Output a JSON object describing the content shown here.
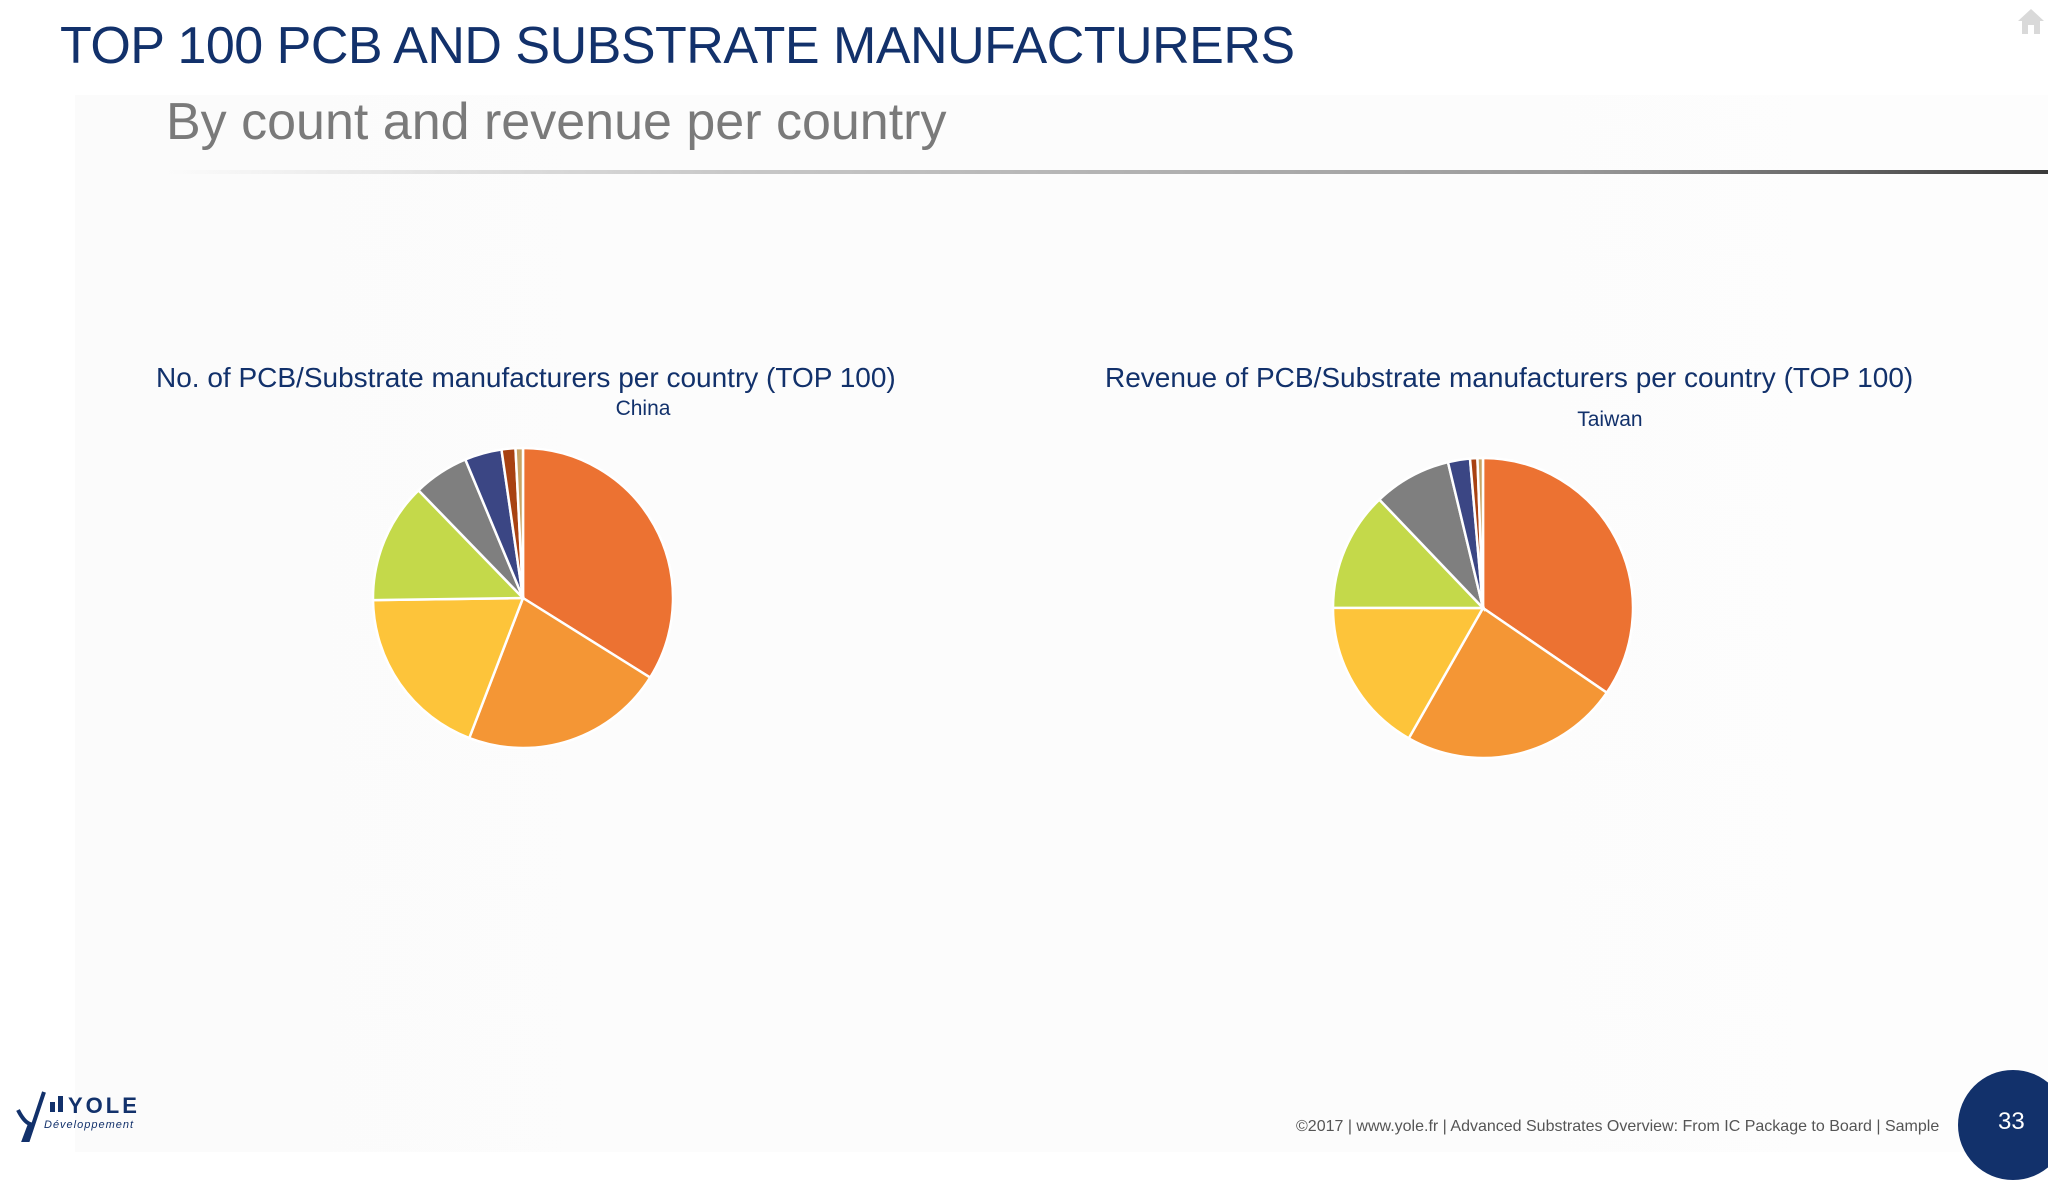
{
  "header": {
    "title": "TOP 100 PCB AND SUBSTRATE MANUFACTURERS",
    "subtitle": "By count and revenue per country"
  },
  "chart_data": [
    {
      "type": "pie",
      "title": "No. of PCB/Substrate manufacturers per country (TOP 100)",
      "labels": [
        "China",
        "",
        "",
        "",
        "",
        "",
        "",
        ""
      ],
      "values": [
        34,
        22,
        19,
        13,
        6,
        4,
        1.5,
        0.8
      ],
      "colors": [
        "#ec7232",
        "#f49635",
        "#fdc43a",
        "#c4d94a",
        "#7f7f7f",
        "#3b4684",
        "#a84212",
        "#c8a464"
      ]
    },
    {
      "type": "pie",
      "title": "Revenue of PCB/Substrate manufacturers per country (TOP 100)",
      "labels": [
        "Taiwan",
        "",
        "",
        "",
        "",
        "",
        "",
        ""
      ],
      "values": [
        35,
        24,
        17,
        13,
        8.5,
        2.4,
        0.8,
        0.6
      ],
      "colors": [
        "#ec7232",
        "#f49635",
        "#fdc43a",
        "#c4d94a",
        "#7f7f7f",
        "#3b4684",
        "#a84212",
        "#c8a464"
      ]
    }
  ],
  "logo": {
    "name": "YOLE",
    "tagline": "Développement"
  },
  "footer": {
    "text": "©2017 | www.yole.fr | Advanced Substrates Overview: From IC Package to Board | Sample",
    "page_number": "33"
  },
  "icons": {
    "home": "home-icon"
  }
}
